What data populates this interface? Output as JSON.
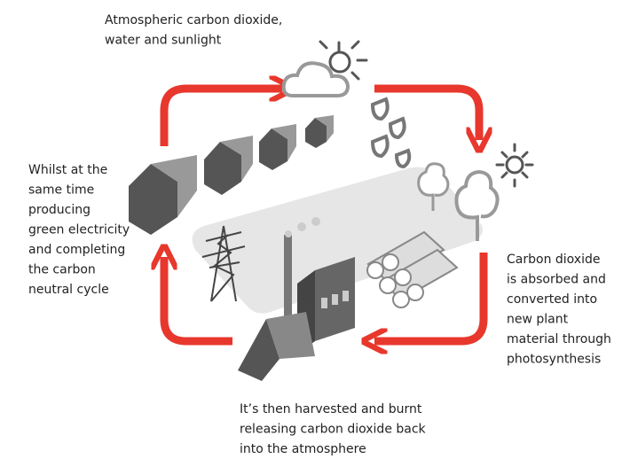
{
  "labels": {
    "top": [
      "Atmospheric carbon dioxide,",
      "water and sunlight"
    ],
    "right": [
      "Carbon dioxide",
      "is absorbed and",
      "converted into",
      "new plant",
      "material through",
      "photosynthesis"
    ],
    "bottom": [
      "It’s then harvested and burnt",
      "releasing carbon dioxide back",
      "into the atmosphere"
    ],
    "left": [
      "Whilst at the",
      "same time",
      "producing",
      "green electricity",
      "and completing",
      "the carbon",
      "neutral cycle"
    ]
  }
}
